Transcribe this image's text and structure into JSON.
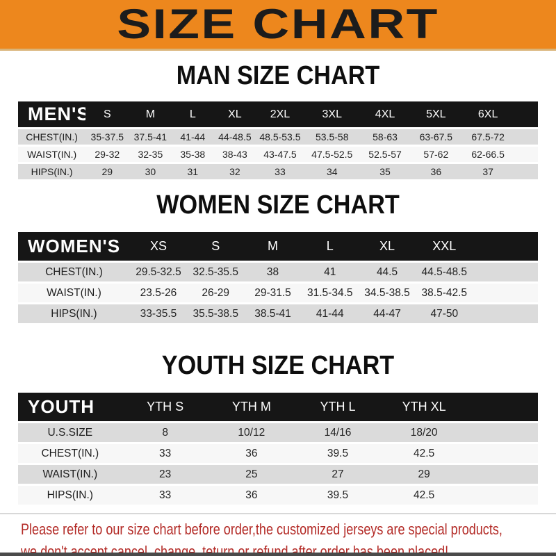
{
  "banner": {
    "title": "SIZE CHART"
  },
  "chart_data": [
    {
      "type": "table",
      "title": "MAN SIZE CHART",
      "header_label": "MEN'S",
      "columns": [
        "S",
        "M",
        "L",
        "XL",
        "2XL",
        "3XL",
        "4XL",
        "5XL",
        "6XL"
      ],
      "rows": [
        {
          "label": "CHEST(IN.)",
          "values": [
            "35-37.5",
            "37.5-41",
            "41-44",
            "44-48.5",
            "48.5-53.5",
            "53.5-58",
            "58-63",
            "63-67.5",
            "67.5-72"
          ]
        },
        {
          "label": "WAIST(IN.)",
          "values": [
            "29-32",
            "32-35",
            "35-38",
            "38-43",
            "43-47.5",
            "47.5-52.5",
            "52.5-57",
            "57-62",
            "62-66.5"
          ]
        },
        {
          "label": "HIPS(IN.)",
          "values": [
            "29",
            "30",
            "31",
            "32",
            "33",
            "34",
            "35",
            "36",
            "37"
          ]
        }
      ]
    },
    {
      "type": "table",
      "title": "WOMEN SIZE CHART",
      "header_label": "WOMEN'S",
      "columns": [
        "XS",
        "S",
        "M",
        "L",
        "XL",
        "XXL"
      ],
      "rows": [
        {
          "label": "CHEST(IN.)",
          "values": [
            "29.5-32.5",
            "32.5-35.5",
            "38",
            "41",
            "44.5",
            "44.5-48.5"
          ]
        },
        {
          "label": "WAIST(IN.)",
          "values": [
            "23.5-26",
            "26-29",
            "29-31.5",
            "31.5-34.5",
            "34.5-38.5",
            "38.5-42.5"
          ]
        },
        {
          "label": "HIPS(IN.)",
          "values": [
            "33-35.5",
            "35.5-38.5",
            "38.5-41",
            "41-44",
            "44-47",
            "47-50"
          ]
        }
      ]
    },
    {
      "type": "table",
      "title": "YOUTH SIZE CHART",
      "header_label": "YOUTH",
      "columns": [
        "YTH S",
        "YTH M",
        "YTH L",
        "YTH XL"
      ],
      "rows": [
        {
          "label": "U.S.SIZE",
          "values": [
            "8",
            "10/12",
            "14/16",
            "18/20"
          ]
        },
        {
          "label": "CHEST(IN.)",
          "values": [
            "33",
            "36",
            "39.5",
            "42.5"
          ]
        },
        {
          "label": "WAIST(IN.)",
          "values": [
            "23",
            "25",
            "27",
            "29"
          ]
        },
        {
          "label": "HIPS(IN.)",
          "values": [
            "33",
            "36",
            "39.5",
            "42.5"
          ]
        }
      ]
    }
  ],
  "footer": {
    "line1": "Please refer to our size chart before order,the customized jerseys are special products,",
    "line2": "we don't accept cancel, change, teturn or refund after order has been placed!"
  },
  "colors": {
    "banner_bg": "#ED871D",
    "header_bar_bg": "#161616",
    "row_gray": "#DBDBDB",
    "row_light": "#F7F7F7",
    "footer_text": "#B32A26"
  }
}
